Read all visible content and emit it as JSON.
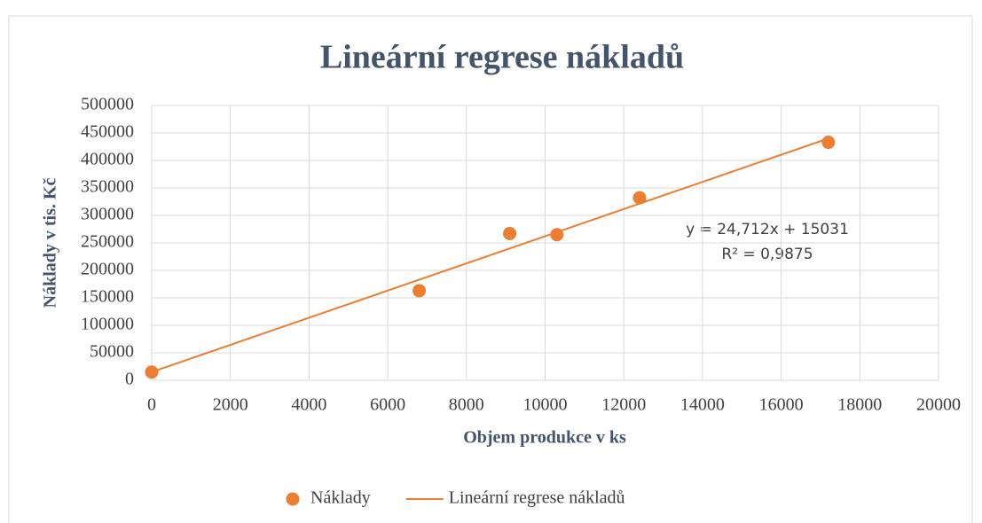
{
  "chart_data": {
    "type": "scatter",
    "title": "Lineární regrese nákladů",
    "xlabel": "Objem produkce v ks",
    "ylabel": "Náklady v tis. Kč",
    "annotations": [
      "y = 24,712x + 15031",
      "R² = 0,9875"
    ],
    "series": [
      {
        "name": "Náklady",
        "type": "scatter",
        "color": "#ed7d31",
        "x": [
          0,
          6800,
          9100,
          10300,
          12400,
          17200
        ],
        "values": [
          15000,
          163000,
          267000,
          265000,
          332000,
          433000
        ]
      },
      {
        "name": "Lineární regrese nákladů",
        "type": "line",
        "color": "#ed7d31",
        "x": [
          0,
          17200
        ],
        "values": [
          15031,
          440077
        ]
      }
    ],
    "xlim": [
      0,
      20000
    ],
    "xticks": [
      0,
      2000,
      4000,
      6000,
      8000,
      10000,
      12000,
      14000,
      16000,
      18000,
      20000
    ],
    "ylim": [
      0,
      500000
    ],
    "yticks": [
      0,
      50000,
      100000,
      150000,
      200000,
      250000,
      300000,
      350000,
      400000,
      450000,
      500000
    ],
    "grid": true
  }
}
